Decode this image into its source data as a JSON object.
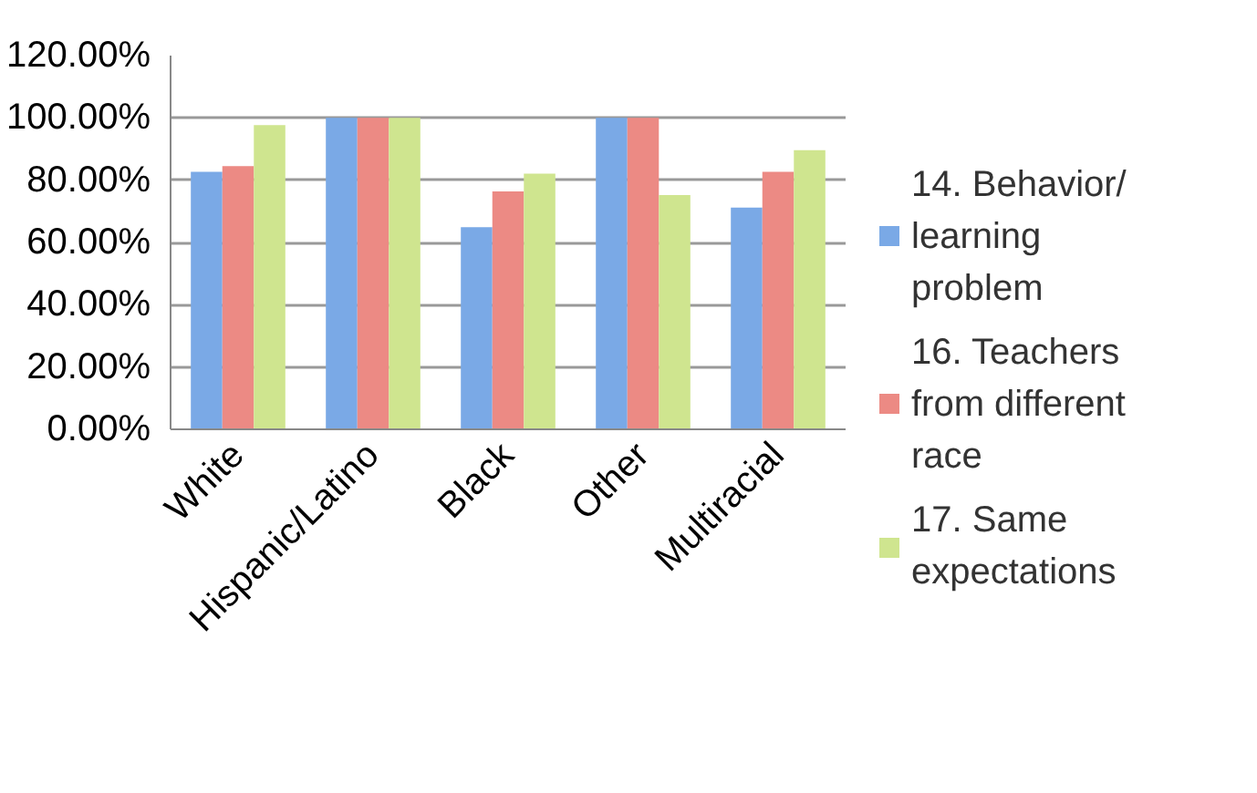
{
  "chart_data": {
    "type": "bar",
    "categories": [
      "White",
      "Hispanic/Latino",
      "Black",
      "Other",
      "Multiracial"
    ],
    "series": [
      {
        "name": "14. Behavior/learning problem",
        "color": "#7aa9e6",
        "values": [
          82.7,
          100,
          64.9,
          100,
          71.2
        ]
      },
      {
        "name": "16. Teachers from different race",
        "color": "#ec8a84",
        "values": [
          84.5,
          100,
          76.4,
          100,
          82.7
        ]
      },
      {
        "name": "17. Same expectations",
        "color": "#cfe58f",
        "values": [
          97.7,
          100,
          82.1,
          75.2,
          89.6
        ]
      }
    ],
    "ylim": [
      0,
      120
    ],
    "yticks": [
      {
        "value": 0,
        "label": "0.00%"
      },
      {
        "value": 20,
        "label": "20.00%"
      },
      {
        "value": 40,
        "label": "40.00%"
      },
      {
        "value": 60,
        "label": "60.00%"
      },
      {
        "value": 80,
        "label": "80.00%"
      },
      {
        "value": 100,
        "label": "100.00%"
      },
      {
        "value": 120,
        "label": "120.00%"
      }
    ],
    "grid": "y",
    "legend": "right"
  }
}
